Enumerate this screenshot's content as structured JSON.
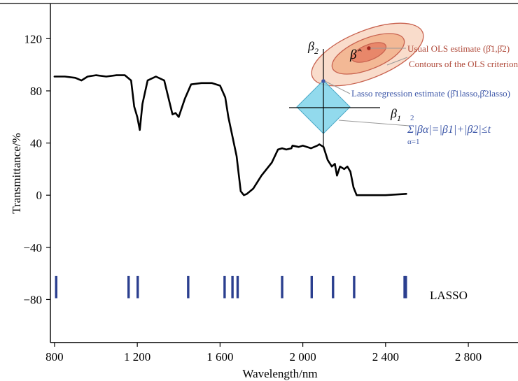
{
  "chart_data": {
    "type": "line",
    "title": "",
    "xlabel": "Wavelength/nm",
    "ylabel": "Transmittance/%",
    "xlim": [
      780,
      3040
    ],
    "ylim": [
      -113,
      147
    ],
    "x_ticks": [
      800,
      1200,
      1600,
      2000,
      2400,
      2800
    ],
    "x_tick_labels": [
      "800",
      "1 200",
      "1 600",
      "2 000",
      "2 400",
      "2 800"
    ],
    "y_ticks": [
      120,
      80,
      40,
      0,
      -40,
      -80
    ],
    "y_tick_labels": [
      "120",
      "80",
      "40",
      "0",
      "−40",
      "−80"
    ],
    "grid": false,
    "series": [
      {
        "color": "#000000",
        "x": [
          800,
          850,
          900,
          930,
          960,
          1000,
          1050,
          1100,
          1140,
          1170,
          1185,
          1200,
          1212,
          1225,
          1250,
          1290,
          1330,
          1370,
          1385,
          1400,
          1415,
          1430,
          1460,
          1510,
          1560,
          1600,
          1625,
          1640,
          1660,
          1680,
          1700,
          1715,
          1730,
          1760,
          1800,
          1850,
          1880,
          1900,
          1920,
          1945,
          1950,
          1980,
          2000,
          2040,
          2070,
          2080,
          2100,
          2120,
          2140,
          2155,
          2165,
          2180,
          2200,
          2215,
          2230,
          2245,
          2260,
          2275,
          2300,
          2350,
          2400,
          2500
        ],
        "y": [
          91,
          91,
          90,
          88,
          91,
          92,
          91,
          92,
          92,
          88,
          68,
          60,
          50,
          70,
          88,
          91,
          88,
          62,
          63,
          60,
          67,
          74,
          85,
          86,
          86,
          84,
          75,
          60,
          45,
          30,
          3,
          0,
          1,
          5,
          15,
          25,
          35,
          36,
          35,
          36,
          38,
          37,
          38,
          36,
          38,
          39,
          37,
          27,
          22,
          24,
          15,
          22,
          20,
          22,
          18,
          6,
          0,
          0,
          0,
          0,
          0,
          1
        ]
      }
    ],
    "lasso_wavelengths": [
      808,
      1158,
      1202,
      1446,
      1622,
      1660,
      1685,
      1900,
      2043,
      2146,
      2248,
      2492,
      2498
    ],
    "lasso_label": "LASSO",
    "lasso_color": "#2b3f8f",
    "inset": {
      "axis_x_label": "β",
      "axis_x_sub": "1",
      "axis_y_label": "β",
      "axis_y_sub": "2",
      "beta_hat_label": "β̂",
      "ols_estimate_label": "Usual OLS estimate (β̂1,β̂2)",
      "ols_contours_label": "Contours of the OLS criterion",
      "lasso_estimate_label": "Lasso regression estimate (β̂1lasso,β̂2lasso)",
      "constraint_label": "Σ|βα|=|β1|+|β2|≤t",
      "constraint_sum_from": "α=1",
      "constraint_sum_to": "2",
      "ols_color": "#b04a3a",
      "contour_fill": "#f4c5a8",
      "contour_inner": "#e8876a",
      "lasso_color": "#3d57a8",
      "diamond_fill": "#7fd3ea"
    }
  }
}
